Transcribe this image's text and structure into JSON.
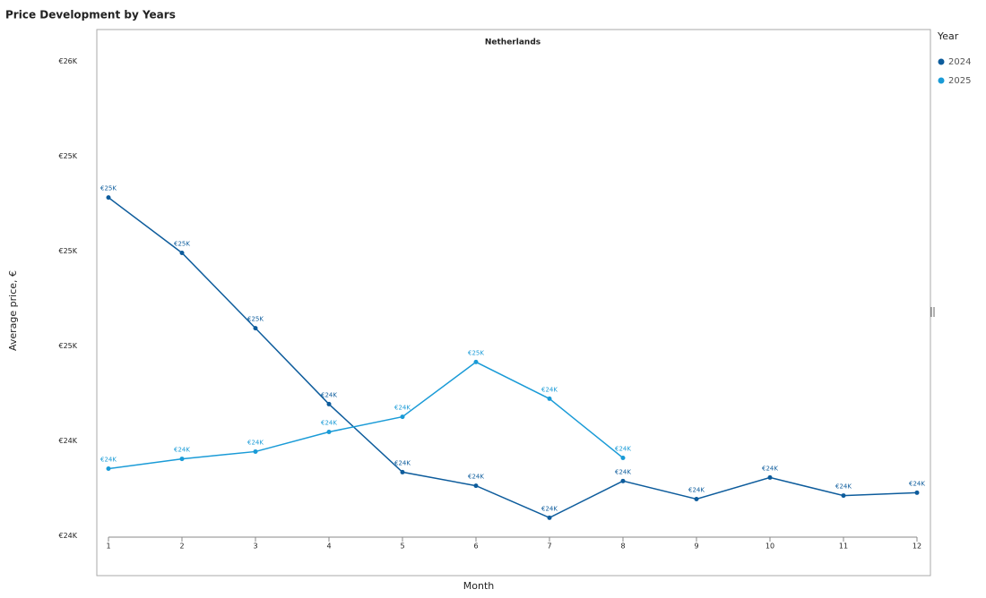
{
  "chart_data": {
    "type": "line",
    "title": "Price Development by Years",
    "subtitle": "Netherlands",
    "xlabel": "Month",
    "ylabel": "Average price, €",
    "legend_title": "Year",
    "x": [
      1,
      2,
      3,
      4,
      5,
      6,
      7,
      8,
      9,
      10,
      11,
      12
    ],
    "xlim": [
      1,
      12
    ],
    "xticks": [
      1,
      2,
      3,
      4,
      5,
      6,
      7,
      8,
      9,
      10,
      11,
      12
    ],
    "ylim": [
      23990,
      25580
    ],
    "yticks": [
      {
        "value": 24000,
        "label": "€24K"
      },
      {
        "value": 24300,
        "label": "€24K"
      },
      {
        "value": 24600,
        "label": "€25K"
      },
      {
        "value": 24900,
        "label": "€25K"
      },
      {
        "value": 25200,
        "label": "€25K"
      },
      {
        "value": 25500,
        "label": "€26K"
      }
    ],
    "series": [
      {
        "name": "2024",
        "color": "#0d5c9c",
        "values": [
          25069,
          24894,
          24656,
          24416,
          24201,
          24158,
          24057,
          24173,
          24116,
          24184,
          24127,
          24136
        ],
        "value_labels": [
          "€25K",
          "€25K",
          "€25K",
          "€24K",
          "€24K",
          "€24K",
          "€24K",
          "€24K",
          "€24K",
          "€24K",
          "€24K",
          "€24K"
        ]
      },
      {
        "name": "2025",
        "color": "#1a9bd7",
        "values": [
          24212,
          24243,
          24266,
          24328,
          24376,
          24549,
          24433,
          24246,
          null,
          null,
          null,
          null
        ],
        "value_labels": [
          "€24K",
          "€24K",
          "€24K",
          "€24K",
          "€24K",
          "€25K",
          "€24K",
          "€24K",
          null,
          null,
          null,
          null
        ]
      }
    ]
  }
}
